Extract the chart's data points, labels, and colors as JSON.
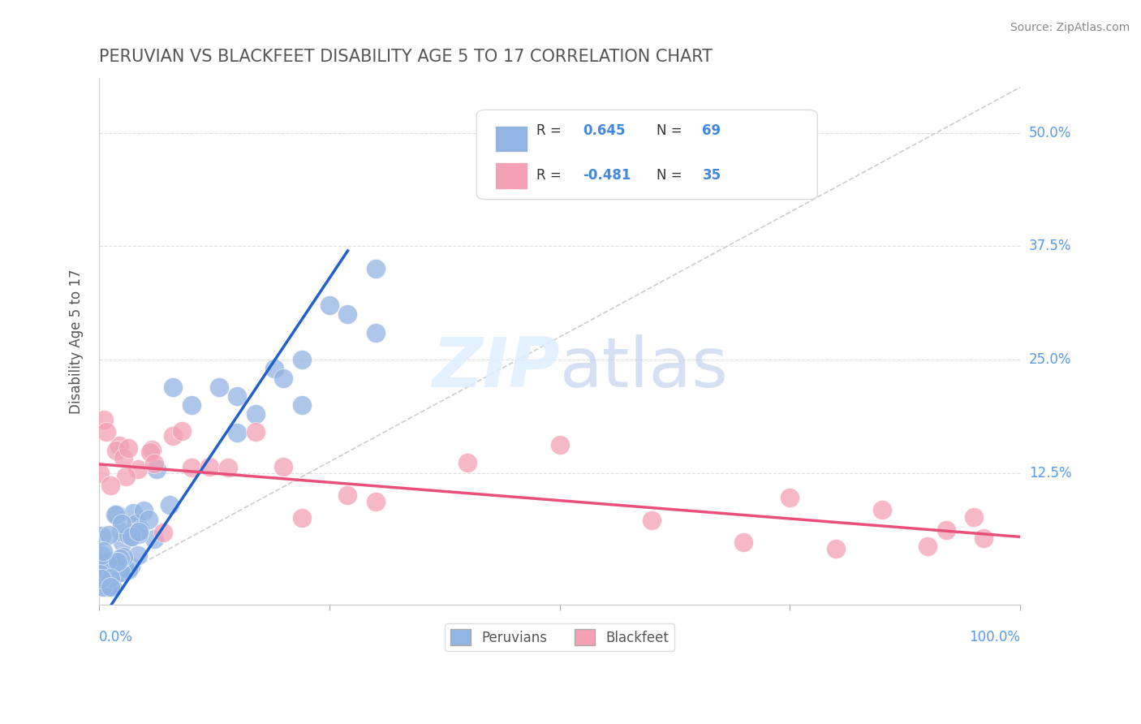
{
  "title": "PERUVIAN VS BLACKFEET DISABILITY AGE 5 TO 17 CORRELATION CHART",
  "source": "Source: ZipAtlas.com",
  "ylabel": "Disability Age 5 to 17",
  "xlim": [
    0.0,
    1.0
  ],
  "ylim": [
    -0.02,
    0.56
  ],
  "blue_R": 0.645,
  "blue_N": 69,
  "pink_R": -0.481,
  "pink_N": 35,
  "blue_color": "#92b4e3",
  "pink_color": "#f4a0b5",
  "blue_line_color": "#2060c8",
  "pink_line_color": "#e8507a",
  "title_color": "#555555",
  "legend_R_color": "#4488dd",
  "legend_N_color": "#4488dd",
  "ytick_vals": [
    0.0,
    0.125,
    0.25,
    0.375,
    0.5
  ],
  "ytick_labels": [
    "",
    "12.5%",
    "25.0%",
    "37.5%",
    "50.0%"
  ],
  "blue_line_x": [
    0.0,
    0.27
  ],
  "blue_line_y": [
    -0.04,
    0.37
  ],
  "pink_line_x": [
    0.0,
    1.0
  ],
  "pink_line_y": [
    0.135,
    0.055
  ],
  "dash_line_x": [
    0.0,
    1.0
  ],
  "dash_line_y": [
    0.0,
    0.55
  ]
}
